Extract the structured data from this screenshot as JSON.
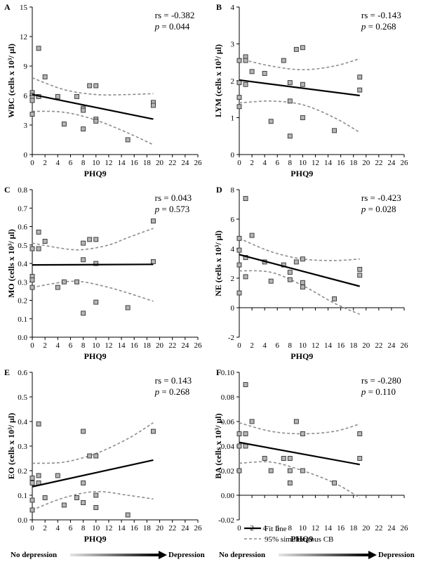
{
  "legend": {
    "fit": "Fit line",
    "cb": "95% simultaneous CB"
  },
  "footer": {
    "left": "No depression",
    "right": "Depression"
  },
  "colors": {
    "point_fill": "#b5b5b5",
    "point_stroke": "#303030",
    "fit": "#000000",
    "cb": "#8c8c8c"
  },
  "chart_data": [
    {
      "type": "scatter",
      "panel": "A",
      "xlabel": "PHQ9",
      "ylabel": "WBC (cells x 10³/ µl)",
      "xlim": [
        0,
        26
      ],
      "xticks": [
        0,
        2,
        4,
        6,
        8,
        10,
        12,
        14,
        16,
        18,
        20,
        22,
        24,
        26
      ],
      "ylim": [
        0,
        15
      ],
      "yticks": [
        0,
        3,
        6,
        9,
        12,
        15
      ],
      "stat_line1": "rs = -0.382",
      "p_value": "= 0.044",
      "points": [
        [
          0,
          6.3
        ],
        [
          0,
          6.0
        ],
        [
          0,
          5.8
        ],
        [
          0,
          5.5
        ],
        [
          0,
          4.1
        ],
        [
          1,
          10.8
        ],
        [
          1,
          5.9
        ],
        [
          2,
          7.9
        ],
        [
          4,
          5.9
        ],
        [
          5,
          3.1
        ],
        [
          7,
          5.9
        ],
        [
          8,
          4.7
        ],
        [
          8,
          4.5
        ],
        [
          8,
          2.6
        ],
        [
          9,
          7.0
        ],
        [
          10,
          7.0
        ],
        [
          10,
          3.6
        ],
        [
          10,
          3.4
        ],
        [
          15,
          1.5
        ],
        [
          19,
          5.3
        ],
        [
          19,
          5.0
        ]
      ],
      "fit": [
        [
          0,
          6.1
        ],
        [
          19,
          3.6
        ]
      ],
      "cb_upper": [
        [
          0,
          7.8
        ],
        [
          5,
          6.6
        ],
        [
          10,
          6.1
        ],
        [
          15,
          6.1
        ],
        [
          19,
          6.2
        ]
      ],
      "cb_lower": [
        [
          0,
          4.4
        ],
        [
          5,
          4.3
        ],
        [
          10,
          3.5
        ],
        [
          15,
          2.2
        ],
        [
          19,
          1.0
        ]
      ]
    },
    {
      "type": "scatter",
      "panel": "B",
      "xlabel": "PHQ9",
      "ylabel": "LYM (cells x 10³/ µl)",
      "xlim": [
        0,
        26
      ],
      "xticks": [
        0,
        2,
        4,
        6,
        8,
        10,
        12,
        14,
        16,
        18,
        20,
        22,
        24,
        26
      ],
      "ylim": [
        0,
        4
      ],
      "yticks": [
        0,
        1,
        2,
        3,
        4
      ],
      "stat_line1": "rs = -0.143",
      "p_value": "= 0.268",
      "points": [
        [
          0,
          2.55
        ],
        [
          0,
          1.95
        ],
        [
          0,
          1.55
        ],
        [
          0,
          1.3
        ],
        [
          1,
          2.65
        ],
        [
          1,
          2.55
        ],
        [
          1,
          1.9
        ],
        [
          2,
          2.25
        ],
        [
          4,
          2.2
        ],
        [
          5,
          0.9
        ],
        [
          7,
          2.55
        ],
        [
          8,
          1.95
        ],
        [
          8,
          1.45
        ],
        [
          8,
          0.5
        ],
        [
          9,
          2.85
        ],
        [
          10,
          2.9
        ],
        [
          10,
          1.9
        ],
        [
          10,
          1.0
        ],
        [
          15,
          0.65
        ],
        [
          19,
          2.1
        ],
        [
          19,
          1.75
        ]
      ],
      "fit": [
        [
          0,
          2.02
        ],
        [
          19,
          1.6
        ]
      ],
      "cb_upper": [
        [
          0,
          2.6
        ],
        [
          5,
          2.4
        ],
        [
          10,
          2.3
        ],
        [
          15,
          2.4
        ],
        [
          19,
          2.6
        ]
      ],
      "cb_lower": [
        [
          0,
          1.4
        ],
        [
          5,
          1.45
        ],
        [
          10,
          1.35
        ],
        [
          15,
          1.0
        ],
        [
          19,
          0.6
        ]
      ]
    },
    {
      "type": "scatter",
      "panel": "C",
      "xlabel": "PHQ9",
      "ylabel": "MO (cells x 10³/ µl)",
      "xlim": [
        0,
        26
      ],
      "xticks": [
        0,
        2,
        4,
        6,
        8,
        10,
        12,
        14,
        16,
        18,
        20,
        22,
        24,
        26
      ],
      "ylim": [
        0,
        0.8
      ],
      "yticks": [
        0,
        0.1,
        0.2,
        0.3,
        0.4,
        0.5,
        0.6,
        0.7,
        0.8
      ],
      "stat_line1": "rs = 0.043",
      "p_value": "= 0.573",
      "points": [
        [
          0,
          0.48
        ],
        [
          0,
          0.33
        ],
        [
          0,
          0.31
        ],
        [
          0,
          0.27
        ],
        [
          1,
          0.57
        ],
        [
          1,
          0.48
        ],
        [
          2,
          0.52
        ],
        [
          4,
          0.27
        ],
        [
          5,
          0.3
        ],
        [
          7,
          0.3
        ],
        [
          8,
          0.51
        ],
        [
          8,
          0.42
        ],
        [
          8,
          0.13
        ],
        [
          9,
          0.53
        ],
        [
          10,
          0.53
        ],
        [
          10,
          0.4
        ],
        [
          10,
          0.19
        ],
        [
          15,
          0.16
        ],
        [
          19,
          0.63
        ],
        [
          19,
          0.41
        ]
      ],
      "fit": [
        [
          0,
          0.392
        ],
        [
          19,
          0.395
        ]
      ],
      "cb_upper": [
        [
          0,
          0.51
        ],
        [
          5,
          0.48
        ],
        [
          8,
          0.475
        ],
        [
          12,
          0.5
        ],
        [
          15,
          0.54
        ],
        [
          19,
          0.59
        ]
      ],
      "cb_lower": [
        [
          0,
          0.27
        ],
        [
          5,
          0.3
        ],
        [
          8,
          0.3
        ],
        [
          12,
          0.27
        ],
        [
          15,
          0.24
        ],
        [
          19,
          0.195
        ]
      ]
    },
    {
      "type": "scatter",
      "panel": "D",
      "xlabel": "PHQ9",
      "ylabel": "NE (cells x 10³/ µl)",
      "xlim": [
        0,
        26
      ],
      "xticks": [
        0,
        2,
        4,
        6,
        8,
        10,
        12,
        14,
        16,
        18,
        20,
        22,
        24,
        26
      ],
      "ylim": [
        -2,
        8
      ],
      "yticks": [
        -2,
        0,
        2,
        4,
        6,
        8
      ],
      "stat_line1": "rs = -0.423",
      "p_value": "= 0.028",
      "points": [
        [
          0,
          4.7
        ],
        [
          0,
          3.9
        ],
        [
          0,
          2.9
        ],
        [
          0,
          1.0
        ],
        [
          1,
          7.4
        ],
        [
          1,
          3.4
        ],
        [
          1,
          2.1
        ],
        [
          2,
          4.9
        ],
        [
          4,
          3.1
        ],
        [
          5,
          1.8
        ],
        [
          7,
          2.9
        ],
        [
          8,
          2.4
        ],
        [
          8,
          1.9
        ],
        [
          9,
          3.1
        ],
        [
          10,
          3.3
        ],
        [
          10,
          1.7
        ],
        [
          10,
          1.4
        ],
        [
          15,
          0.6
        ],
        [
          19,
          2.6
        ],
        [
          19,
          2.2
        ]
      ],
      "fit": [
        [
          0,
          3.6
        ],
        [
          19,
          1.45
        ]
      ],
      "cb_upper": [
        [
          0,
          4.7
        ],
        [
          5,
          3.8
        ],
        [
          10,
          3.3
        ],
        [
          15,
          3.2
        ],
        [
          19,
          3.3
        ]
      ],
      "cb_lower": [
        [
          0,
          2.5
        ],
        [
          5,
          2.4
        ],
        [
          10,
          1.5
        ],
        [
          15,
          0.3
        ],
        [
          19,
          -0.45
        ]
      ]
    },
    {
      "type": "scatter",
      "panel": "E",
      "xlabel": "PHQ9",
      "ylabel": "EO (cells x 10³/ µl)",
      "xlim": [
        0,
        26
      ],
      "xticks": [
        0,
        2,
        4,
        6,
        8,
        10,
        12,
        14,
        16,
        18,
        20,
        22,
        24,
        26
      ],
      "ylim": [
        0,
        0.6
      ],
      "yticks": [
        0,
        0.1,
        0.2,
        0.3,
        0.4,
        0.5,
        0.6
      ],
      "stat_line1": "rs = 0.143",
      "p_value": "= 0.268",
      "points": [
        [
          0,
          0.17
        ],
        [
          0,
          0.15
        ],
        [
          0,
          0.08
        ],
        [
          0,
          0.04
        ],
        [
          1,
          0.39
        ],
        [
          1,
          0.18
        ],
        [
          1,
          0.15
        ],
        [
          2,
          0.09
        ],
        [
          4,
          0.18
        ],
        [
          5,
          0.06
        ],
        [
          7,
          0.09
        ],
        [
          8,
          0.36
        ],
        [
          8,
          0.15
        ],
        [
          8,
          0.07
        ],
        [
          9,
          0.26
        ],
        [
          10,
          0.26
        ],
        [
          10,
          0.1
        ],
        [
          10,
          0.05
        ],
        [
          15,
          0.02
        ],
        [
          19,
          0.36
        ]
      ],
      "fit": [
        [
          0,
          0.135
        ],
        [
          19,
          0.243
        ]
      ],
      "cb_upper": [
        [
          0,
          0.23
        ],
        [
          5,
          0.235
        ],
        [
          10,
          0.27
        ],
        [
          15,
          0.33
        ],
        [
          19,
          0.395
        ]
      ],
      "cb_lower": [
        [
          0,
          0.04
        ],
        [
          5,
          0.09
        ],
        [
          10,
          0.115
        ],
        [
          15,
          0.1
        ],
        [
          19,
          0.085
        ]
      ]
    },
    {
      "type": "scatter",
      "panel": "F",
      "xlabel": "PHQ9",
      "ylabel": "BA (cells x 10³/ µl)",
      "xlim": [
        0,
        26
      ],
      "xticks": [
        0,
        2,
        4,
        6,
        8,
        10,
        12,
        14,
        16,
        18,
        20,
        22,
        24,
        26
      ],
      "ylim": [
        -0.02,
        0.1
      ],
      "yticks": [
        -0.02,
        0.0,
        0.02,
        0.04,
        0.06,
        0.08,
        0.1
      ],
      "stat_line1": "rs = -0.280",
      "p_value": "= 0.110",
      "points": [
        [
          0,
          0.05
        ],
        [
          0,
          0.04
        ],
        [
          0,
          0.02
        ],
        [
          1,
          0.09
        ],
        [
          1,
          0.05
        ],
        [
          1,
          0.04
        ],
        [
          2,
          0.06
        ],
        [
          4,
          0.03
        ],
        [
          5,
          0.02
        ],
        [
          7,
          0.03
        ],
        [
          8,
          0.03
        ],
        [
          8,
          0.02
        ],
        [
          8,
          0.01
        ],
        [
          9,
          0.06
        ],
        [
          10,
          0.05
        ],
        [
          10,
          0.02
        ],
        [
          15,
          0.01
        ],
        [
          19,
          0.05
        ],
        [
          19,
          0.03
        ]
      ],
      "fit": [
        [
          0,
          0.043
        ],
        [
          19,
          0.025
        ]
      ],
      "cb_upper": [
        [
          0,
          0.059
        ],
        [
          5,
          0.052
        ],
        [
          10,
          0.05
        ],
        [
          15,
          0.052
        ],
        [
          19,
          0.058
        ]
      ],
      "cb_lower": [
        [
          0,
          0.026
        ],
        [
          5,
          0.027
        ],
        [
          10,
          0.02
        ],
        [
          15,
          0.01
        ],
        [
          19,
          -0.002
        ]
      ]
    }
  ]
}
